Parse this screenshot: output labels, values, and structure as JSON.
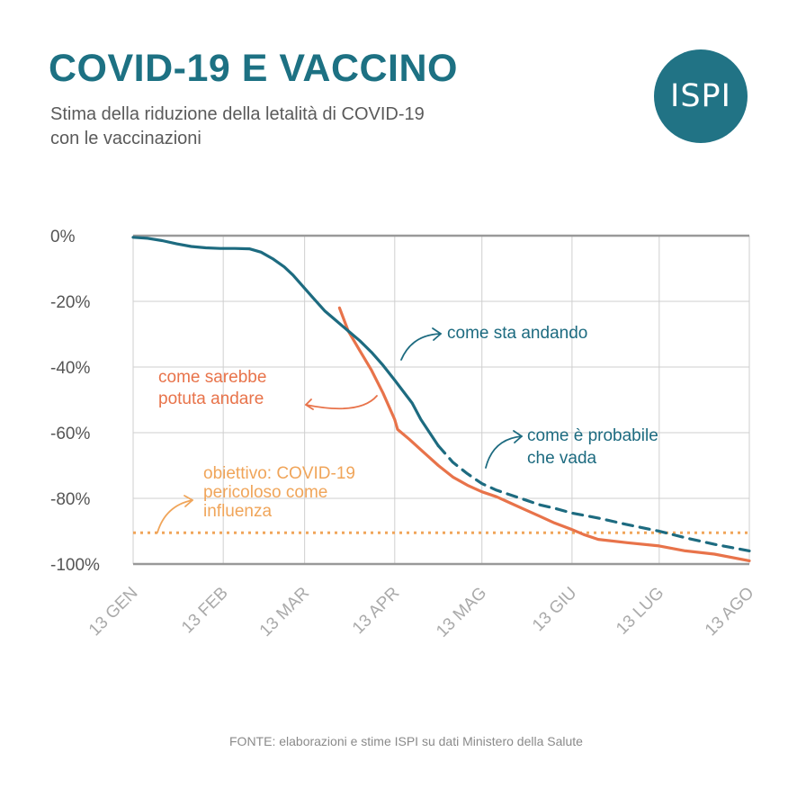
{
  "header": {
    "title": "COVID-19 E VACCINO",
    "subtitle_line1": "Stima della riduzione della letalità di COVID-19",
    "subtitle_line2": "con le vaccinazioni",
    "logo_text": "ISPI"
  },
  "footer": {
    "source": "FONTE: elaborazioni e stime ISPI su dati Ministero della Salute"
  },
  "colors": {
    "accent": "#1d7183",
    "logo_bg": "#217385",
    "actual": "#1d6b80",
    "counterfactual": "#e8734a",
    "goal": "#f0a55a",
    "grid": "#cfcfcf",
    "axis": "#999999",
    "label_gray": "#555555"
  },
  "chart_data": {
    "type": "line",
    "x_unit": "days since 13 GEN",
    "xlim": [
      0,
      212
    ],
    "ylim": [
      -100,
      0
    ],
    "y_ticks": [
      0,
      -20,
      -40,
      -60,
      -80,
      -100
    ],
    "y_tick_labels": [
      "0%",
      "-20%",
      "-40%",
      "-60%",
      "-80%",
      "-100%"
    ],
    "x_ticks": [
      0,
      31,
      59,
      90,
      120,
      151,
      181,
      212
    ],
    "x_tick_labels": [
      "13 GEN",
      "13 FEB",
      "13 MAR",
      "13 APR",
      "13 MAG",
      "13 GIU",
      "13 LUG",
      "13 AGO"
    ],
    "grid": true,
    "series": [
      {
        "name": "come sta andando",
        "style": "solid",
        "color_key": "actual",
        "points": [
          [
            0,
            -0.5
          ],
          [
            5,
            -0.8
          ],
          [
            10,
            -1.5
          ],
          [
            15,
            -2.5
          ],
          [
            20,
            -3.3
          ],
          [
            25,
            -3.7
          ],
          [
            30,
            -3.9
          ],
          [
            35,
            -3.9
          ],
          [
            40,
            -4
          ],
          [
            44,
            -5
          ],
          [
            48,
            -7
          ],
          [
            52,
            -9.5
          ],
          [
            55,
            -12
          ],
          [
            58,
            -15
          ],
          [
            62,
            -19
          ],
          [
            66,
            -23
          ],
          [
            70,
            -26
          ],
          [
            74,
            -29
          ],
          [
            78,
            -32
          ],
          [
            82,
            -35.5
          ],
          [
            86,
            -39.5
          ],
          [
            90,
            -44
          ],
          [
            93,
            -47.5
          ],
          [
            96,
            -51
          ],
          [
            99,
            -56
          ],
          [
            102,
            -60
          ],
          [
            105,
            -64
          ]
        ]
      },
      {
        "name": "come è probabile che vada",
        "style": "dashed",
        "color_key": "actual",
        "points": [
          [
            105,
            -64
          ],
          [
            110,
            -69
          ],
          [
            115,
            -72.5
          ],
          [
            120,
            -75.5
          ],
          [
            125,
            -77.5
          ],
          [
            130,
            -79
          ],
          [
            135,
            -80.5
          ],
          [
            140,
            -82
          ],
          [
            145,
            -83
          ],
          [
            151,
            -84.5
          ],
          [
            160,
            -86
          ],
          [
            170,
            -88
          ],
          [
            181,
            -90
          ],
          [
            190,
            -92
          ],
          [
            200,
            -94
          ],
          [
            212,
            -96
          ]
        ]
      },
      {
        "name": "come sarebbe potuta andare",
        "style": "solid",
        "color_key": "counterfactual",
        "points": [
          [
            71,
            -22
          ],
          [
            74,
            -29
          ],
          [
            78,
            -35
          ],
          [
            82,
            -41
          ],
          [
            86,
            -48
          ],
          [
            90,
            -56
          ],
          [
            91,
            -59
          ],
          [
            95,
            -62
          ],
          [
            100,
            -66
          ],
          [
            105,
            -70
          ],
          [
            110,
            -73.5
          ],
          [
            115,
            -76
          ],
          [
            120,
            -78
          ],
          [
            125,
            -79.5
          ],
          [
            130,
            -81.5
          ],
          [
            135,
            -83.5
          ],
          [
            140,
            -85.5
          ],
          [
            145,
            -87.5
          ],
          [
            151,
            -89.5
          ],
          [
            155,
            -91
          ],
          [
            160,
            -92.5
          ],
          [
            170,
            -93.5
          ],
          [
            181,
            -94.5
          ],
          [
            190,
            -96
          ],
          [
            200,
            -97
          ],
          [
            212,
            -99
          ]
        ]
      },
      {
        "name": "obiettivo: COVID-19 pericoloso come influenza",
        "style": "dotted",
        "color_key": "goal",
        "points": [
          [
            0,
            -90.5
          ],
          [
            212,
            -90.5
          ]
        ]
      }
    ],
    "annotations": [
      {
        "lines": [
          "come sta andando"
        ],
        "color_key": "actual"
      },
      {
        "lines": [
          "come sarebbe",
          "potuta andare"
        ],
        "color_key": "counterfactual"
      },
      {
        "lines": [
          "come è probabile",
          "che vada"
        ],
        "color_key": "actual"
      },
      {
        "lines": [
          "obiettivo: COVID-19",
          "pericoloso come",
          "influenza"
        ],
        "color_key": "goal"
      }
    ]
  }
}
